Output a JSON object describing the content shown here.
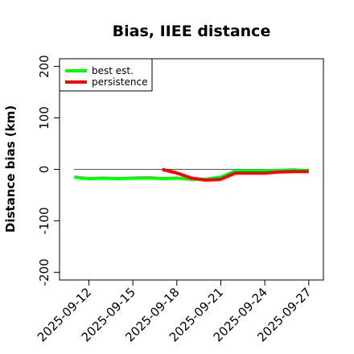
{
  "chart_data": {
    "type": "line",
    "title": "Bias, IIEE distance",
    "xlabel": "",
    "ylabel": "Distance bias (km)",
    "ylim": [
      -215,
      215
    ],
    "yticks": [
      -200,
      -100,
      0,
      100,
      200
    ],
    "xlim": [
      "2025-09-10",
      "2025-09-28"
    ],
    "xticks": [
      "2025-09-12",
      "2025-09-15",
      "2025-09-18",
      "2025-09-21",
      "2025-09-24",
      "2025-09-27"
    ],
    "reference_line": 0,
    "legend_position": "top-left",
    "grid": false,
    "series": [
      {
        "name": "best est.",
        "color": "#00ff00",
        "points": [
          {
            "x": "2025-09-11",
            "y": -15
          },
          {
            "x": "2025-09-12",
            "y": -18
          },
          {
            "x": "2025-09-13",
            "y": -17
          },
          {
            "x": "2025-09-14",
            "y": -18
          },
          {
            "x": "2025-09-15",
            "y": -17
          },
          {
            "x": "2025-09-16",
            "y": -16
          },
          {
            "x": "2025-09-17",
            "y": -18
          },
          {
            "x": "2025-09-18",
            "y": -17
          },
          {
            "x": "2025-09-19",
            "y": -19
          },
          {
            "x": "2025-09-20",
            "y": -19
          },
          {
            "x": "2025-09-21",
            "y": -15
          },
          {
            "x": "2025-09-22",
            "y": -3
          },
          {
            "x": "2025-09-23",
            "y": -3
          },
          {
            "x": "2025-09-24",
            "y": -3
          },
          {
            "x": "2025-09-25",
            "y": -2
          },
          {
            "x": "2025-09-26",
            "y": -1
          },
          {
            "x": "2025-09-27",
            "y": -3
          }
        ]
      },
      {
        "name": "persistence",
        "color": "#ff0000",
        "points": [
          {
            "x": "2025-09-17",
            "y": 0
          },
          {
            "x": "2025-09-18",
            "y": -7
          },
          {
            "x": "2025-09-19",
            "y": -17
          },
          {
            "x": "2025-09-20",
            "y": -21
          },
          {
            "x": "2025-09-21",
            "y": -19
          },
          {
            "x": "2025-09-22",
            "y": -7
          },
          {
            "x": "2025-09-23",
            "y": -7
          },
          {
            "x": "2025-09-24",
            "y": -7
          },
          {
            "x": "2025-09-25",
            "y": -5
          },
          {
            "x": "2025-09-26",
            "y": -4
          },
          {
            "x": "2025-09-27",
            "y": -4
          }
        ]
      }
    ]
  }
}
